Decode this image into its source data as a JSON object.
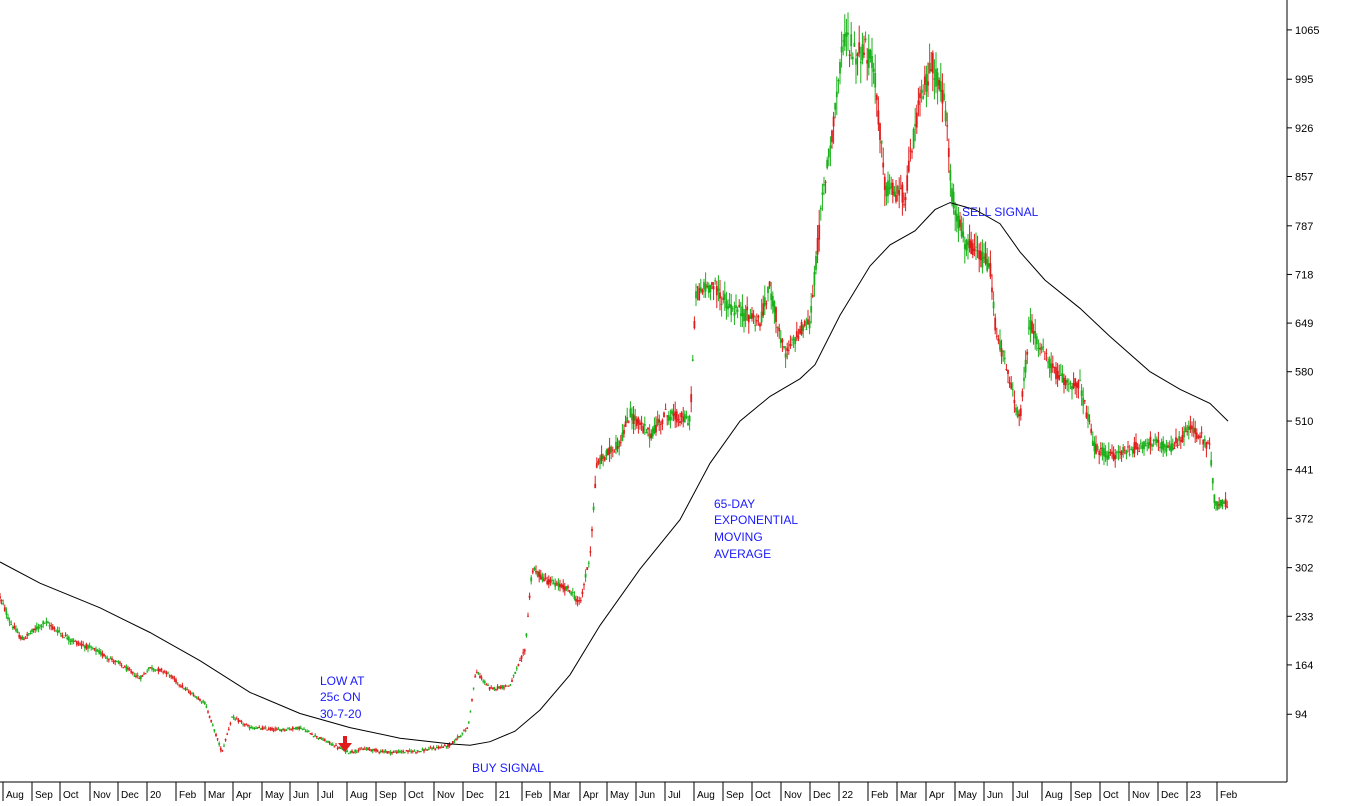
{
  "chart_data": {
    "type": "candlestick",
    "title": "",
    "xlabel": "",
    "ylabel": "",
    "ylim": [
      25,
      1135
    ],
    "y_ticks": [
      94,
      164,
      233,
      302,
      372,
      441,
      510,
      580,
      649,
      718,
      787,
      857,
      926,
      995,
      1065
    ],
    "x_tick_labels": [
      "Aug",
      "Sep",
      "Oct",
      "Nov",
      "Dec",
      "20",
      "Feb",
      "Mar",
      "Apr",
      "May",
      "Jun",
      "Jul",
      "Aug",
      "Sep",
      "Oct",
      "Nov",
      "Dec",
      "21",
      "Feb",
      "Mar",
      "Apr",
      "May",
      "Jun",
      "Jul",
      "Aug",
      "Sep",
      "Oct",
      "Nov",
      "Dec",
      "22",
      "Feb",
      "Mar",
      "Apr",
      "May",
      "Jun",
      "Jul",
      "Aug",
      "Sep",
      "Oct",
      "Nov",
      "Dec",
      "23",
      "Feb"
    ],
    "grid": false,
    "colors": {
      "up": "#19b019",
      "down": "#e01b1b",
      "ema": "#000000",
      "annotation": "#1a1aff",
      "arrow": "#e01b1b"
    },
    "series": [
      {
        "name": "Price",
        "style": "candles",
        "points": [
          [
            0,
            260
          ],
          [
            10,
            225
          ],
          [
            22,
            200
          ],
          [
            45,
            225
          ],
          [
            70,
            200
          ],
          [
            95,
            185
          ],
          [
            120,
            165
          ],
          [
            140,
            145
          ],
          [
            150,
            160
          ],
          [
            165,
            155
          ],
          [
            185,
            130
          ],
          [
            205,
            110
          ],
          [
            222,
            40
          ],
          [
            232,
            90
          ],
          [
            250,
            75
          ],
          [
            280,
            72
          ],
          [
            300,
            75
          ],
          [
            320,
            60
          ],
          [
            348,
            40
          ],
          [
            365,
            45
          ],
          [
            390,
            40
          ],
          [
            420,
            42
          ],
          [
            450,
            50
          ],
          [
            468,
            75
          ],
          [
            476,
            155
          ],
          [
            490,
            130
          ],
          [
            510,
            135
          ],
          [
            525,
            185
          ],
          [
            532,
            300
          ],
          [
            545,
            285
          ],
          [
            570,
            270
          ],
          [
            580,
            250
          ],
          [
            590,
            320
          ],
          [
            597,
            450
          ],
          [
            620,
            480
          ],
          [
            630,
            520
          ],
          [
            650,
            490
          ],
          [
            665,
            520
          ],
          [
            690,
            510
          ],
          [
            696,
            690
          ],
          [
            712,
            705
          ],
          [
            730,
            670
          ],
          [
            750,
            660
          ],
          [
            760,
            650
          ],
          [
            770,
            700
          ],
          [
            785,
            600
          ],
          [
            800,
            640
          ],
          [
            810,
            650
          ],
          [
            822,
            820
          ],
          [
            830,
            900
          ],
          [
            845,
            1060
          ],
          [
            855,
            1030
          ],
          [
            865,
            1040
          ],
          [
            875,
            1000
          ],
          [
            885,
            840
          ],
          [
            905,
            830
          ],
          [
            918,
            950
          ],
          [
            932,
            1020
          ],
          [
            945,
            960
          ],
          [
            952,
            830
          ],
          [
            965,
            760
          ],
          [
            975,
            750
          ],
          [
            990,
            730
          ],
          [
            995,
            650
          ],
          [
            1005,
            590
          ],
          [
            1020,
            510
          ],
          [
            1030,
            650
          ],
          [
            1045,
            600
          ],
          [
            1060,
            570
          ],
          [
            1080,
            560
          ],
          [
            1095,
            470
          ],
          [
            1110,
            460
          ],
          [
            1130,
            470
          ],
          [
            1150,
            480
          ],
          [
            1170,
            470
          ],
          [
            1190,
            500
          ],
          [
            1200,
            490
          ],
          [
            1210,
            470
          ],
          [
            1215,
            390
          ],
          [
            1228,
            395
          ]
        ]
      },
      {
        "name": "65-DAY EXPONENTIAL MOVING AVERAGE",
        "style": "line",
        "points": [
          [
            0,
            310
          ],
          [
            40,
            280
          ],
          [
            100,
            245
          ],
          [
            150,
            210
          ],
          [
            200,
            170
          ],
          [
            250,
            125
          ],
          [
            300,
            95
          ],
          [
            350,
            75
          ],
          [
            400,
            60
          ],
          [
            450,
            52
          ],
          [
            470,
            50
          ],
          [
            490,
            55
          ],
          [
            515,
            70
          ],
          [
            540,
            100
          ],
          [
            570,
            150
          ],
          [
            600,
            220
          ],
          [
            640,
            300
          ],
          [
            680,
            370
          ],
          [
            710,
            450
          ],
          [
            740,
            510
          ],
          [
            770,
            545
          ],
          [
            800,
            570
          ],
          [
            815,
            590
          ],
          [
            840,
            660
          ],
          [
            870,
            730
          ],
          [
            890,
            760
          ],
          [
            915,
            780
          ],
          [
            935,
            810
          ],
          [
            950,
            820
          ],
          [
            975,
            810
          ],
          [
            1000,
            790
          ],
          [
            1020,
            750
          ],
          [
            1045,
            710
          ],
          [
            1080,
            670
          ],
          [
            1110,
            630
          ],
          [
            1150,
            580
          ],
          [
            1180,
            555
          ],
          [
            1210,
            535
          ],
          [
            1228,
            510
          ]
        ]
      }
    ],
    "annotations": {
      "sell_signal": "SELL SIGNAL",
      "buy_signal": "BUY SIGNAL",
      "ema_label_1": "65-DAY",
      "ema_label_2": "EXPONENTIAL",
      "ema_label_3": "MOVING",
      "ema_label_4": "AVERAGE",
      "low_label_1": "LOW AT",
      "low_label_2": "25c ON",
      "low_label_3": "30-7-20"
    }
  }
}
